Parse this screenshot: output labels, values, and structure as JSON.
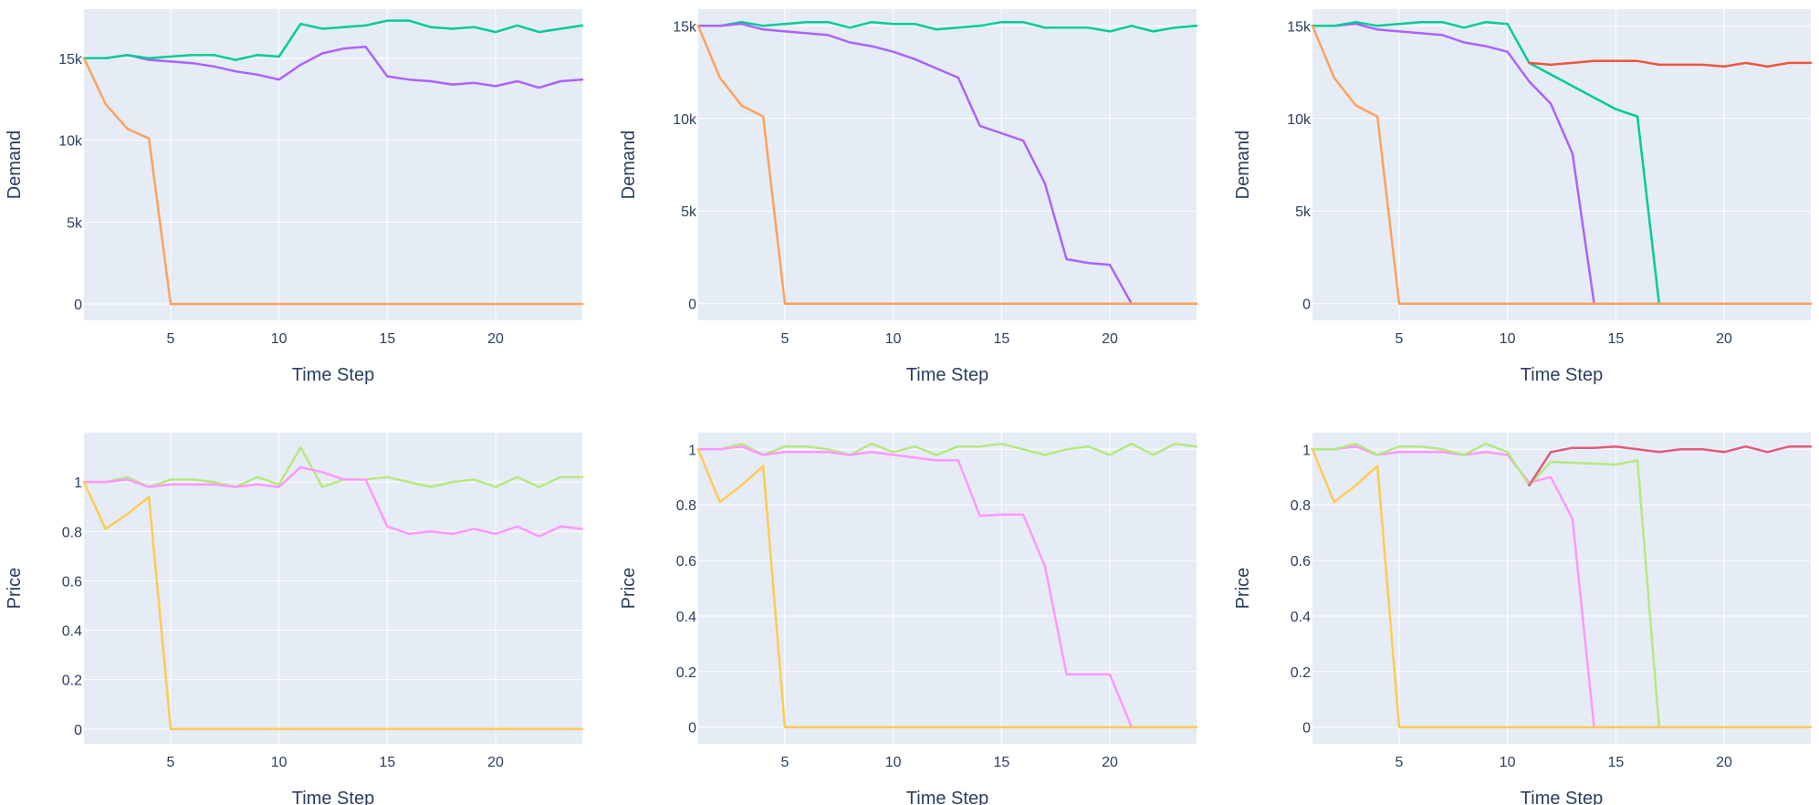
{
  "chart_data": [
    {
      "type": "line",
      "xlabel": "Time Step",
      "ylabel": "Demand",
      "xlim": [
        1,
        24
      ],
      "ylim": [
        -1000,
        18000
      ],
      "x_ticks": [
        5,
        10,
        15,
        20
      ],
      "y_ticks": [
        0,
        5000,
        10000,
        15000
      ],
      "y_tick_labels": [
        "0",
        "5k",
        "10k",
        "15k"
      ],
      "x": [
        1,
        2,
        3,
        4,
        5,
        6,
        7,
        8,
        9,
        10,
        11,
        12,
        13,
        14,
        15,
        16,
        17,
        18,
        19,
        20,
        21,
        22,
        23,
        24
      ],
      "series": [
        {
          "color": "#ab63fa",
          "values": [
            15000,
            15000,
            15200,
            14900,
            14800,
            14700,
            14500,
            14200,
            14000,
            13700,
            14600,
            15300,
            15600,
            15700,
            13900,
            13700,
            13600,
            13400,
            13500,
            13300,
            13600,
            13200,
            13600,
            13700
          ]
        },
        {
          "color": "#00cc96",
          "values": [
            15000,
            15000,
            15200,
            15000,
            15100,
            15200,
            15200,
            14900,
            15200,
            15100,
            17100,
            16800,
            16900,
            17000,
            17300,
            17300,
            16900,
            16800,
            16900,
            16600,
            17000,
            16600,
            16800,
            17000
          ]
        },
        {
          "color": "#FFA15A",
          "values": [
            15000,
            12200,
            10700,
            10100,
            0,
            0,
            0,
            0,
            0,
            0,
            0,
            0,
            0,
            0,
            0,
            0,
            0,
            0,
            0,
            0,
            0,
            0,
            0,
            0
          ]
        }
      ]
    },
    {
      "type": "line",
      "xlabel": "Time Step",
      "ylabel": "Demand",
      "xlim": [
        1,
        24
      ],
      "ylim": [
        -900,
        15900
      ],
      "x_ticks": [
        5,
        10,
        15,
        20
      ],
      "y_ticks": [
        0,
        5000,
        10000,
        15000
      ],
      "y_tick_labels": [
        "0",
        "5k",
        "10k",
        "15k"
      ],
      "x": [
        1,
        2,
        3,
        4,
        5,
        6,
        7,
        8,
        9,
        10,
        11,
        12,
        13,
        14,
        15,
        16,
        17,
        18,
        19,
        20,
        21,
        22,
        23,
        24
      ],
      "series": [
        {
          "color": "#00cc96",
          "values": [
            15000,
            15000,
            15200,
            15000,
            15100,
            15200,
            15200,
            14900,
            15200,
            15100,
            15100,
            14800,
            14900,
            15000,
            15200,
            15200,
            14900,
            14900,
            14900,
            14700,
            15000,
            14700,
            14900,
            15000
          ]
        },
        {
          "color": "#ab63fa",
          "values": [
            15000,
            15000,
            15100,
            14800,
            14700,
            14600,
            14500,
            14100,
            13900,
            13600,
            13200,
            12700,
            12200,
            9600,
            9200,
            8800,
            6500,
            2400,
            2200,
            2100,
            0,
            0,
            0,
            0
          ]
        },
        {
          "color": "#FFA15A",
          "values": [
            15000,
            12200,
            10700,
            10100,
            0,
            0,
            0,
            0,
            0,
            0,
            0,
            0,
            0,
            0,
            0,
            0,
            0,
            0,
            0,
            0,
            0,
            0,
            0,
            0
          ]
        }
      ]
    },
    {
      "type": "line",
      "xlabel": "Time Step",
      "ylabel": "Demand",
      "xlim": [
        1,
        24
      ],
      "ylim": [
        -900,
        15900
      ],
      "x_ticks": [
        5,
        10,
        15,
        20
      ],
      "y_ticks": [
        0,
        5000,
        10000,
        15000
      ],
      "y_tick_labels": [
        "0",
        "5k",
        "10k",
        "15k"
      ],
      "x": [
        1,
        2,
        3,
        4,
        5,
        6,
        7,
        8,
        9,
        10,
        11,
        12,
        13,
        14,
        15,
        16,
        17,
        18,
        19,
        20,
        21,
        22,
        23,
        24
      ],
      "series": [
        {
          "color": "#ab63fa",
          "values": [
            15000,
            15000,
            15100,
            14800,
            14700,
            14600,
            14500,
            14100,
            13900,
            13600,
            12000,
            10800,
            8100,
            0,
            0,
            0,
            0,
            0,
            0,
            0,
            0,
            0,
            0,
            0
          ]
        },
        {
          "color": "#00cc96",
          "values": [
            15000,
            15000,
            15200,
            15000,
            15100,
            15200,
            15200,
            14900,
            15200,
            15100,
            13000,
            null,
            null,
            null,
            10500,
            10100,
            0,
            0,
            0,
            0,
            0,
            0,
            0,
            0
          ]
        },
        {
          "color": "#EF553B",
          "values": [
            null,
            null,
            null,
            null,
            null,
            null,
            null,
            null,
            null,
            null,
            13000,
            12900,
            13000,
            13100,
            13100,
            13100,
            12900,
            12900,
            12900,
            12800,
            13000,
            12800,
            13000,
            13000
          ]
        },
        {
          "color": "#FFA15A",
          "values": [
            15000,
            12200,
            10700,
            10100,
            0,
            0,
            0,
            0,
            0,
            0,
            0,
            0,
            0,
            0,
            0,
            0,
            0,
            0,
            0,
            0,
            0,
            0,
            0,
            0
          ]
        }
      ]
    },
    {
      "type": "line",
      "xlabel": "Time Step",
      "ylabel": "Price",
      "xlim": [
        1,
        24
      ],
      "ylim": [
        -0.06,
        1.2
      ],
      "x_ticks": [
        5,
        10,
        15,
        20
      ],
      "y_ticks": [
        0,
        0.2,
        0.4,
        0.6,
        0.8,
        1
      ],
      "y_tick_labels": [
        "0",
        "0.2",
        "0.4",
        "0.6",
        "0.8",
        "1"
      ],
      "x": [
        1,
        2,
        3,
        4,
        5,
        6,
        7,
        8,
        9,
        10,
        11,
        12,
        13,
        14,
        15,
        16,
        17,
        18,
        19,
        20,
        21,
        22,
        23,
        24
      ],
      "series": [
        {
          "color": "#b6e880",
          "values": [
            1.0,
            1.0,
            1.02,
            0.98,
            1.01,
            1.01,
            1.0,
            0.98,
            1.02,
            0.99,
            1.14,
            0.98,
            1.01,
            1.01,
            1.02,
            1.0,
            0.98,
            1.0,
            1.01,
            0.98,
            1.02,
            0.98,
            1.02,
            1.02
          ]
        },
        {
          "color": "#ff97ff",
          "values": [
            1.0,
            1.0,
            1.01,
            0.98,
            0.99,
            0.99,
            0.99,
            0.98,
            0.99,
            0.98,
            1.06,
            1.04,
            1.01,
            1.01,
            0.82,
            0.79,
            0.8,
            0.79,
            0.81,
            0.79,
            0.82,
            0.78,
            0.82,
            0.81
          ]
        },
        {
          "color": "#FECB52",
          "values": [
            1.0,
            0.81,
            0.87,
            0.94,
            0,
            0,
            0,
            0,
            0,
            0,
            0,
            0,
            0,
            0,
            0,
            0,
            0,
            0,
            0,
            0,
            0,
            0,
            0,
            0
          ]
        }
      ]
    },
    {
      "type": "line",
      "xlabel": "Time Step",
      "ylabel": "Price",
      "xlim": [
        1,
        24
      ],
      "ylim": [
        -0.06,
        1.06
      ],
      "x_ticks": [
        5,
        10,
        15,
        20
      ],
      "y_ticks": [
        0,
        0.2,
        0.4,
        0.6,
        0.8,
        1
      ],
      "y_tick_labels": [
        "0",
        "0.2",
        "0.4",
        "0.6",
        "0.8",
        "1"
      ],
      "x": [
        1,
        2,
        3,
        4,
        5,
        6,
        7,
        8,
        9,
        10,
        11,
        12,
        13,
        14,
        15,
        16,
        17,
        18,
        19,
        20,
        21,
        22,
        23,
        24
      ],
      "series": [
        {
          "color": "#b6e880",
          "values": [
            1.0,
            1.0,
            1.02,
            0.98,
            1.01,
            1.01,
            1.0,
            0.98,
            1.02,
            0.99,
            1.01,
            0.98,
            1.01,
            1.01,
            1.02,
            1.0,
            0.98,
            1.0,
            1.01,
            0.98,
            1.02,
            0.98,
            1.02,
            1.01
          ]
        },
        {
          "color": "#ff97ff",
          "values": [
            1.0,
            1.0,
            1.01,
            0.98,
            0.99,
            0.99,
            0.99,
            0.98,
            0.99,
            0.98,
            0.97,
            0.96,
            0.96,
            0.76,
            0.765,
            0.765,
            0.58,
            0.19,
            0.19,
            0.19,
            0,
            0,
            0,
            0
          ]
        },
        {
          "color": "#FECB52",
          "values": [
            1.0,
            0.81,
            0.87,
            0.94,
            0,
            0,
            0,
            0,
            0,
            0,
            0,
            0,
            0,
            0,
            0,
            0,
            0,
            0,
            0,
            0,
            0,
            0,
            0,
            0
          ]
        }
      ]
    },
    {
      "type": "line",
      "xlabel": "Time Step",
      "ylabel": "Price",
      "xlim": [
        1,
        24
      ],
      "ylim": [
        -0.06,
        1.06
      ],
      "x_ticks": [
        5,
        10,
        15,
        20
      ],
      "y_ticks": [
        0,
        0.2,
        0.4,
        0.6,
        0.8,
        1
      ],
      "y_tick_labels": [
        "0",
        "0.2",
        "0.4",
        "0.6",
        "0.8",
        "1"
      ],
      "x": [
        1,
        2,
        3,
        4,
        5,
        6,
        7,
        8,
        9,
        10,
        11,
        12,
        13,
        14,
        15,
        16,
        17,
        18,
        19,
        20,
        21,
        22,
        23,
        24
      ],
      "series": [
        {
          "color": "#ff97ff",
          "values": [
            1.0,
            1.0,
            1.01,
            0.98,
            0.99,
            0.99,
            0.99,
            0.98,
            0.99,
            0.98,
            0.88,
            0.9,
            0.75,
            0,
            0,
            0,
            0,
            0,
            0,
            0,
            0,
            0,
            0,
            0
          ]
        },
        {
          "color": "#b6e880",
          "values": [
            1.0,
            1.0,
            1.02,
            0.98,
            1.01,
            1.01,
            1.0,
            0.98,
            1.02,
            0.99,
            0.87,
            0.955,
            null,
            null,
            0.945,
            0.96,
            0,
            0,
            0,
            0,
            0,
            0,
            0,
            0
          ]
        },
        {
          "color": "#e45a78",
          "values": [
            null,
            null,
            null,
            null,
            null,
            null,
            null,
            null,
            null,
            null,
            0.87,
            0.99,
            1.005,
            1.005,
            1.01,
            1.0,
            0.99,
            1.0,
            1.0,
            0.99,
            1.01,
            0.99,
            1.01,
            1.01
          ]
        },
        {
          "color": "#FECB52",
          "values": [
            1.0,
            0.81,
            0.87,
            0.94,
            0,
            0,
            0,
            0,
            0,
            0,
            0,
            0,
            0,
            0,
            0,
            0,
            0,
            0,
            0,
            0,
            0,
            0,
            0,
            0
          ]
        }
      ]
    }
  ]
}
